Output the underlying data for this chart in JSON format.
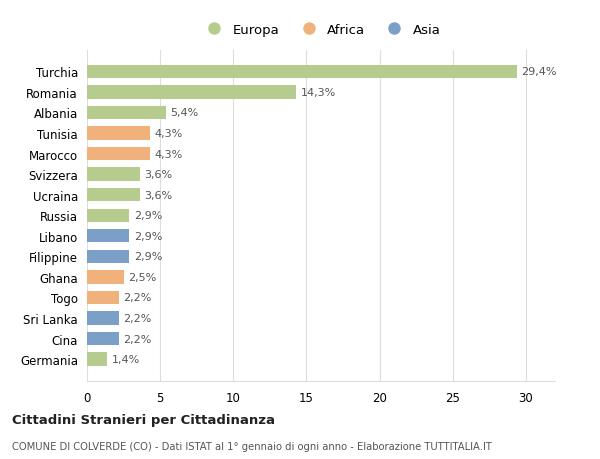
{
  "categories": [
    "Turchia",
    "Romania",
    "Albania",
    "Tunisia",
    "Marocco",
    "Svizzera",
    "Ucraina",
    "Russia",
    "Libano",
    "Filippine",
    "Ghana",
    "Togo",
    "Sri Lanka",
    "Cina",
    "Germania"
  ],
  "values": [
    29.4,
    14.3,
    5.4,
    4.3,
    4.3,
    3.6,
    3.6,
    2.9,
    2.9,
    2.9,
    2.5,
    2.2,
    2.2,
    2.2,
    1.4
  ],
  "labels": [
    "29,4%",
    "14,3%",
    "5,4%",
    "4,3%",
    "4,3%",
    "3,6%",
    "3,6%",
    "2,9%",
    "2,9%",
    "2,9%",
    "2,5%",
    "2,2%",
    "2,2%",
    "2,2%",
    "1,4%"
  ],
  "continents": [
    "Europa",
    "Europa",
    "Europa",
    "Africa",
    "Africa",
    "Europa",
    "Europa",
    "Europa",
    "Asia",
    "Asia",
    "Africa",
    "Africa",
    "Asia",
    "Asia",
    "Europa"
  ],
  "colors": {
    "Europa": "#b5cc8e",
    "Africa": "#f0b27a",
    "Asia": "#7b9fc7"
  },
  "legend_labels": [
    "Europa",
    "Africa",
    "Asia"
  ],
  "legend_colors": [
    "#b5cc8e",
    "#f0b27a",
    "#7b9fc7"
  ],
  "xlim": [
    0,
    32
  ],
  "xticks": [
    0,
    5,
    10,
    15,
    20,
    25,
    30
  ],
  "title": "Cittadini Stranieri per Cittadinanza",
  "subtitle": "COMUNE DI COLVERDE (CO) - Dati ISTAT al 1° gennaio di ogni anno - Elaborazione TUTTITALIA.IT",
  "background_color": "#ffffff",
  "grid_color": "#dddddd"
}
